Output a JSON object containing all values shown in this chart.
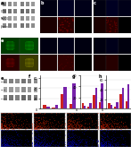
{
  "background": "#ffffff",
  "bar_colors": {
    "red": "#cc2222",
    "purple": "#7722aa"
  },
  "panel_A": {
    "bg": "#d8d8d8",
    "band_rows": 4,
    "band_cols": 6
  },
  "fluor_B": {
    "top_row": [
      "#3a0000",
      "#000000"
    ],
    "bot_row": [
      "#000033",
      "#000033"
    ]
  },
  "fluor_C": {
    "top_row": [
      "#2a0000",
      "#2a0000"
    ],
    "bot_row": [
      "#000022",
      "#000022"
    ]
  },
  "fluor_E": {
    "cells": [
      "#004400",
      "#004a00",
      "#330000",
      "#555500"
    ]
  },
  "flow_row_colors": [
    "#cc2200",
    "#cc2200",
    "#0000bb",
    "#0000bb"
  ]
}
